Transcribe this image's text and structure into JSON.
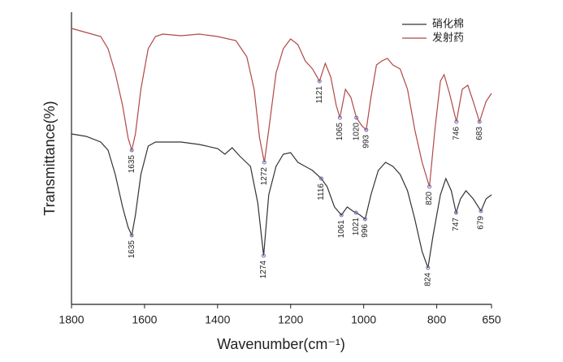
{
  "chart_data": {
    "type": "line",
    "x_label": "Wavenumber(cm⁻¹)",
    "y_label": "Transmittance(%)",
    "xlim": [
      1800,
      650
    ],
    "xticks": [
      1800,
      1600,
      1400,
      1200,
      1000,
      800,
      650
    ],
    "ylim": [
      0,
      360
    ],
    "series": [
      {
        "name": "硝化棉",
        "color": "#333333",
        "x": [
          1800,
          1760,
          1720,
          1700,
          1680,
          1660,
          1645,
          1635,
          1625,
          1610,
          1590,
          1570,
          1500,
          1450,
          1400,
          1380,
          1360,
          1340,
          1310,
          1290,
          1274,
          1260,
          1240,
          1220,
          1200,
          1180,
          1160,
          1140,
          1116,
          1100,
          1080,
          1061,
          1045,
          1030,
          1021,
          1010,
          996,
          980,
          960,
          940,
          920,
          900,
          880,
          860,
          840,
          824,
          810,
          790,
          775,
          760,
          747,
          735,
          720,
          700,
          679,
          665,
          650
        ],
        "values": [
          210,
          207,
          200,
          190,
          160,
          120,
          95,
          85,
          110,
          160,
          195,
          200,
          200,
          197,
          192,
          185,
          193,
          183,
          170,
          125,
          60,
          135,
          170,
          185,
          187,
          175,
          170,
          165,
          155,
          145,
          120,
          110,
          120,
          115,
          113,
          110,
          105,
          135,
          165,
          175,
          170,
          160,
          140,
          105,
          65,
          45,
          85,
          135,
          155,
          140,
          113,
          130,
          140,
          130,
          115,
          130,
          135
        ],
        "peaks": [
          1635,
          1274,
          1116,
          1061,
          1021,
          996,
          824,
          747,
          679
        ]
      },
      {
        "name": "发射药",
        "color": "#b04848",
        "x": [
          1800,
          1760,
          1720,
          1700,
          1680,
          1660,
          1645,
          1635,
          1625,
          1610,
          1590,
          1570,
          1550,
          1500,
          1450,
          1400,
          1350,
          1320,
          1300,
          1285,
          1272,
          1260,
          1240,
          1220,
          1200,
          1180,
          1160,
          1140,
          1121,
          1105,
          1090,
          1075,
          1065,
          1050,
          1035,
          1020,
          1005,
          993,
          980,
          965,
          950,
          935,
          920,
          900,
          880,
          860,
          840,
          820,
          805,
          790,
          780,
          765,
          746,
          730,
          715,
          700,
          683,
          665,
          650
        ],
        "values": [
          340,
          335,
          330,
          315,
          285,
          245,
          205,
          190,
          210,
          265,
          315,
          330,
          333,
          331,
          333,
          330,
          325,
          305,
          265,
          205,
          175,
          215,
          285,
          315,
          327,
          320,
          300,
          290,
          275,
          297,
          280,
          245,
          230,
          265,
          255,
          230,
          220,
          215,
          255,
          295,
          300,
          303,
          295,
          290,
          265,
          215,
          175,
          145,
          215,
          275,
          283,
          260,
          225,
          265,
          270,
          250,
          225,
          250,
          260
        ],
        "peaks": [
          1635,
          1272,
          1121,
          1065,
          1020,
          993,
          820,
          746,
          683
        ]
      }
    ],
    "legend": "upper right"
  }
}
